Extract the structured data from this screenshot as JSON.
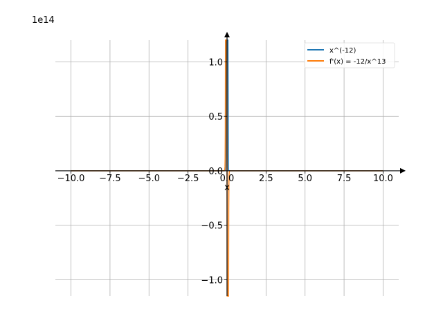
{
  "chart_data": {
    "type": "line",
    "title": "",
    "xlabel": "x",
    "ylabel": "",
    "y_scale_label": "1e14",
    "xlim": [
      -11,
      11
    ],
    "ylim": [
      -1.15,
      1.2
    ],
    "x_ticks": [
      -10.0,
      -7.5,
      -5.0,
      -2.5,
      0.0,
      2.5,
      5.0,
      7.5,
      10.0
    ],
    "x_tick_labels": [
      "−10.0",
      "−7.5",
      "−5.0",
      "−2.5",
      "0.0",
      "2.5",
      "5.0",
      "7.5",
      "10.0"
    ],
    "y_ticks": [
      -1.0,
      -0.5,
      0.0,
      0.5,
      1.0
    ],
    "y_tick_labels": [
      "−1.0",
      "−0.5",
      "0.0",
      "0.5",
      "1.0"
    ],
    "grid": true,
    "legend_position": "top-right",
    "series": [
      {
        "name": "x^(-12)",
        "color": "#1f77b4",
        "function": "x^(-12)",
        "x_range": [
          -10,
          10
        ]
      },
      {
        "name": "f'(x) = -12/x^13",
        "color": "#ff7f0e",
        "function": "-12/x^13",
        "x_range": [
          -10,
          10
        ]
      }
    ]
  }
}
